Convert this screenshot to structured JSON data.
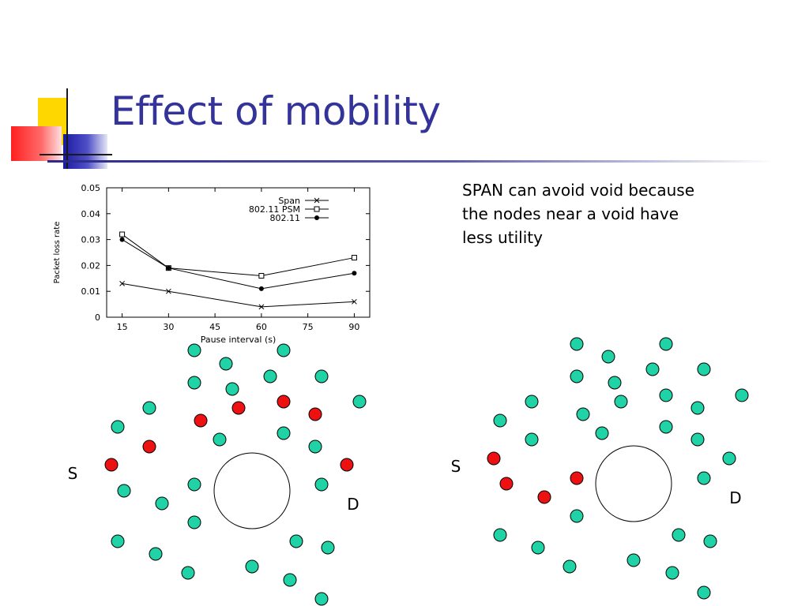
{
  "slide": {
    "title": "Effect of mobility",
    "note_lines": [
      "SPAN can avoid void because",
      "the nodes near a void have",
      "less utility"
    ]
  },
  "colors": {
    "title": "#333399",
    "node_normal": "#1fd3a6",
    "node_highlight": "#ee1111",
    "accent_yellow": "#ffd700",
    "accent_blue": "#2222aa",
    "accent_red": "#ff3333"
  },
  "chart_data": {
    "type": "line",
    "x": [
      15,
      30,
      60,
      90
    ],
    "xticks": [
      15,
      30,
      45,
      60,
      75,
      90
    ],
    "yticks": [
      "0",
      "0.01",
      "0.02",
      "0.03",
      "0.04",
      "0.05"
    ],
    "xlabel": "Pause interval (s)",
    "ylabel": "Packet loss rate",
    "xlim": [
      10,
      95
    ],
    "ylim": [
      0,
      0.05
    ],
    "legend_position": "top-right",
    "grid": false,
    "series": [
      {
        "name": "Span",
        "marker": "x",
        "values": [
          0.013,
          0.01,
          0.004,
          0.006
        ]
      },
      {
        "name": "802.11 PSM",
        "marker": "square",
        "values": [
          0.032,
          0.019,
          0.016,
          0.023
        ]
      },
      {
        "name": "802.11",
        "marker": "dot",
        "values": [
          0.03,
          0.019,
          0.011,
          0.017
        ]
      }
    ]
  },
  "diagrams": [
    {
      "source_label": "S",
      "dest_label": "D"
    },
    {
      "source_label": "S",
      "dest_label": "D"
    }
  ]
}
